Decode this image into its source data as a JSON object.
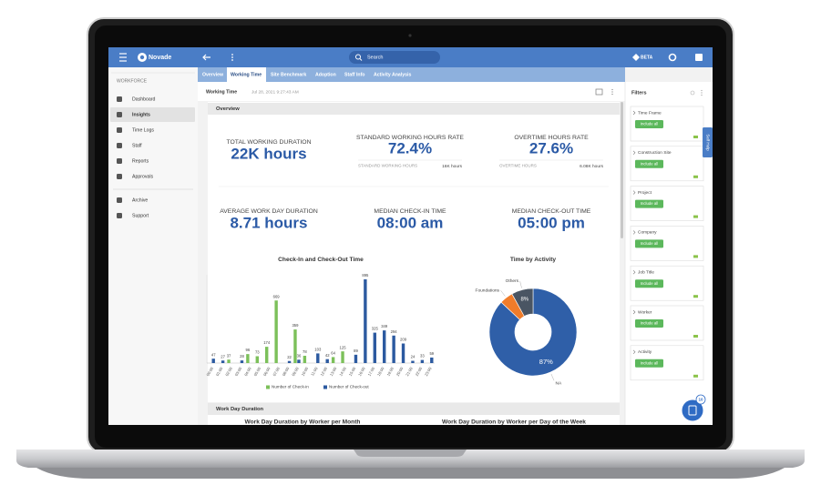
{
  "app": {
    "brand": "Novade",
    "search": "Search",
    "beta": "BETA",
    "sidebar": {
      "section": "WORKFORCE",
      "items": [
        "Dashboard",
        "Insights",
        "Time Logs",
        "Staff",
        "Reports",
        "Approvals",
        "Archive",
        "Support"
      ]
    },
    "tabs": [
      "Overview",
      "Working Time",
      "Site Benchmark",
      "Adoption",
      "Staff Info",
      "Activity Analysis"
    ],
    "breadcrumb": {
      "page": "Working Time",
      "timestamp": "Jul 28, 2021 9:27:43 AM"
    },
    "overview": {
      "title": "Overview",
      "kpis": [
        {
          "label": "TOTAL WORKING DURATION",
          "value": "22K hours"
        },
        {
          "label": "STANDARD WORKING HOURS RATE",
          "value": "72.4%",
          "sub_label": "STANDARD WORKING HOURS",
          "sub_value": "16K hours"
        },
        {
          "label": "OVERTIME HOURS RATE",
          "value": "27.6%",
          "sub_label": "OVERTIME HOURS",
          "sub_value": "6.08K hours"
        },
        {
          "label": "AVERAGE WORK DAY DURATION",
          "value": "8.71 hours"
        },
        {
          "label": "MEDIAN CHECK-IN TIME",
          "value": "08:00 am"
        },
        {
          "label": "MEDIAN CHECK-OUT TIME",
          "value": "05:00 pm"
        }
      ]
    },
    "work_day": {
      "title": "Work Day Duration",
      "subtitles": [
        "Work Day Duration by Worker per Month",
        "Work Day Duration by Worker per Day of the Week"
      ]
    },
    "filters": {
      "title": "Filters",
      "include_label": "Include all",
      "self_help": "Self Help",
      "items": [
        "Time Frame",
        "Construction Site",
        "Project",
        "Company",
        "Job Title",
        "Worker",
        "Activity"
      ]
    },
    "notifications": "10"
  },
  "chart_data": [
    {
      "type": "bar",
      "title": "Check-In and Check-Out Time",
      "categories": [
        "00:00",
        "01:00",
        "02:00",
        "03:00",
        "04:00",
        "05:00",
        "06:00",
        "07:00",
        "08:00",
        "09:00",
        "10:00",
        "11:00",
        "12:00",
        "13:00",
        "14:00",
        "15:00",
        "16:00",
        "17:00",
        "18:00",
        "19:00",
        "20:00",
        "21:00",
        "22:00",
        "23:00"
      ],
      "series": [
        {
          "name": "Number of Check-in",
          "color": "#7cc05a",
          "values": [
            null,
            null,
            37,
            null,
            96,
            73,
            174,
            669,
            null,
            359,
            78,
            null,
            null,
            64,
            125,
            null,
            null,
            null,
            null,
            null,
            null,
            null,
            null,
            null
          ]
        },
        {
          "name": "Number of Check-out",
          "color": "#2c5aa0",
          "values": [
            47,
            27,
            null,
            28,
            null,
            null,
            null,
            null,
            22,
            36,
            null,
            103,
            42,
            null,
            null,
            89,
            895,
            325,
            349,
            294,
            209,
            24,
            33,
            59
          ]
        }
      ]
    },
    {
      "type": "pie",
      "title": "Time by Activity",
      "categories": [
        "NA",
        "Foundations",
        "Others"
      ],
      "values": [
        87,
        5,
        8
      ],
      "value_labels": [
        "87%",
        null,
        "8%"
      ],
      "colors": [
        "#2f5fa8",
        "#f07c2a",
        "#4a5563"
      ]
    }
  ]
}
